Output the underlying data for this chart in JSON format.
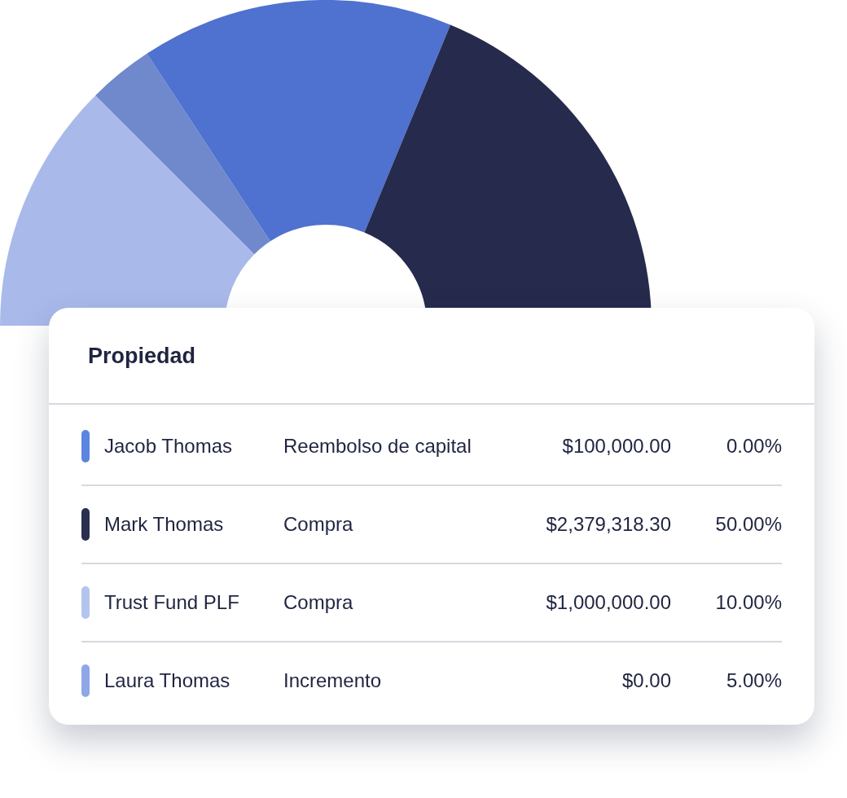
{
  "chart_data": [
    {
      "type": "donut",
      "categories": [
        null,
        null,
        null,
        null
      ],
      "values": [
        25,
        6.5,
        31,
        37.5
      ],
      "colors": [
        "#a9b9ea",
        "#7088cc",
        "#4f71cf",
        "#262b4d"
      ]
    },
    {
      "type": "other",
      "title": "Propiedad",
      "annotations": [
        "Jacob Thomas",
        "Reembolso de capital",
        "$100,000.00",
        "0.00%",
        "Mark Thomas",
        "Compra",
        "$2,379,318.30",
        "50.00%",
        "Trust Fund PLF",
        "Compra",
        "$1,000,000.00",
        "10.00%",
        "Laura Thomas",
        "Incremento",
        "$0.00",
        "5.00%"
      ],
      "colors": [
        "#5b85e0",
        "#2a2f4f",
        "#b3c5ef",
        "#8ea7e6"
      ]
    }
  ]
}
